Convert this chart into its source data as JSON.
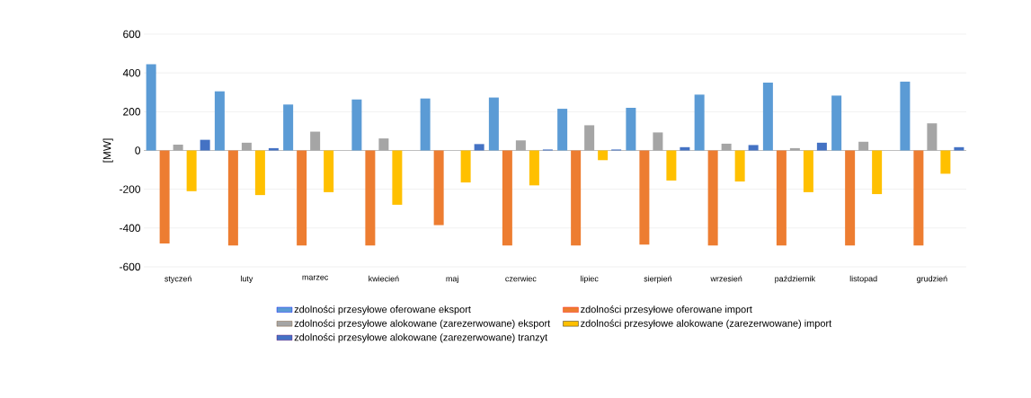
{
  "chart_data": {
    "type": "bar",
    "ylabel": "[MW]",
    "categories": [
      "styczeń",
      "luty",
      "marzec",
      "kwiecień",
      "maj",
      "czerwiec",
      "lipiec",
      "sierpień",
      "wrzesień",
      "październik",
      "listopad",
      "grudzień"
    ],
    "series": [
      {
        "name": "zdolności przesyłowe oferowane eksport",
        "color": "#5b9bd5",
        "values": [
          445,
          305,
          237,
          263,
          268,
          273,
          215,
          220,
          288,
          350,
          283,
          355
        ]
      },
      {
        "name": "zdolności przesyłowe oferowane import",
        "color": "#ed7d31",
        "values": [
          -480,
          -490,
          -490,
          -490,
          -385,
          -490,
          -490,
          -485,
          -490,
          -490,
          -490,
          -490
        ]
      },
      {
        "name": "zdolności przesyłowe alokowane (zarezerwowane) eksport",
        "color": "#a5a5a5",
        "values": [
          30,
          40,
          97,
          62,
          0,
          52,
          130,
          93,
          35,
          12,
          45,
          140
        ]
      },
      {
        "name": "zdolności przesyłowe alokowane (zarezerwowane) import",
        "color": "#ffc000",
        "values": [
          -210,
          -230,
          -215,
          -280,
          -165,
          -180,
          -50,
          -155,
          -160,
          -215,
          -225,
          -120
        ]
      },
      {
        "name": "zdolności przesyłowe alokowane (zarezerwowane) tranzyt",
        "color": "#4472c4",
        "values": [
          55,
          12,
          0,
          0,
          33,
          5,
          5,
          17,
          28,
          40,
          0,
          17
        ]
      }
    ],
    "ylim": [
      -600,
      600
    ],
    "yticks": [
      -600,
      -400,
      -200,
      0,
      200,
      400,
      600
    ],
    "grid": "y",
    "legend": "bottom"
  }
}
